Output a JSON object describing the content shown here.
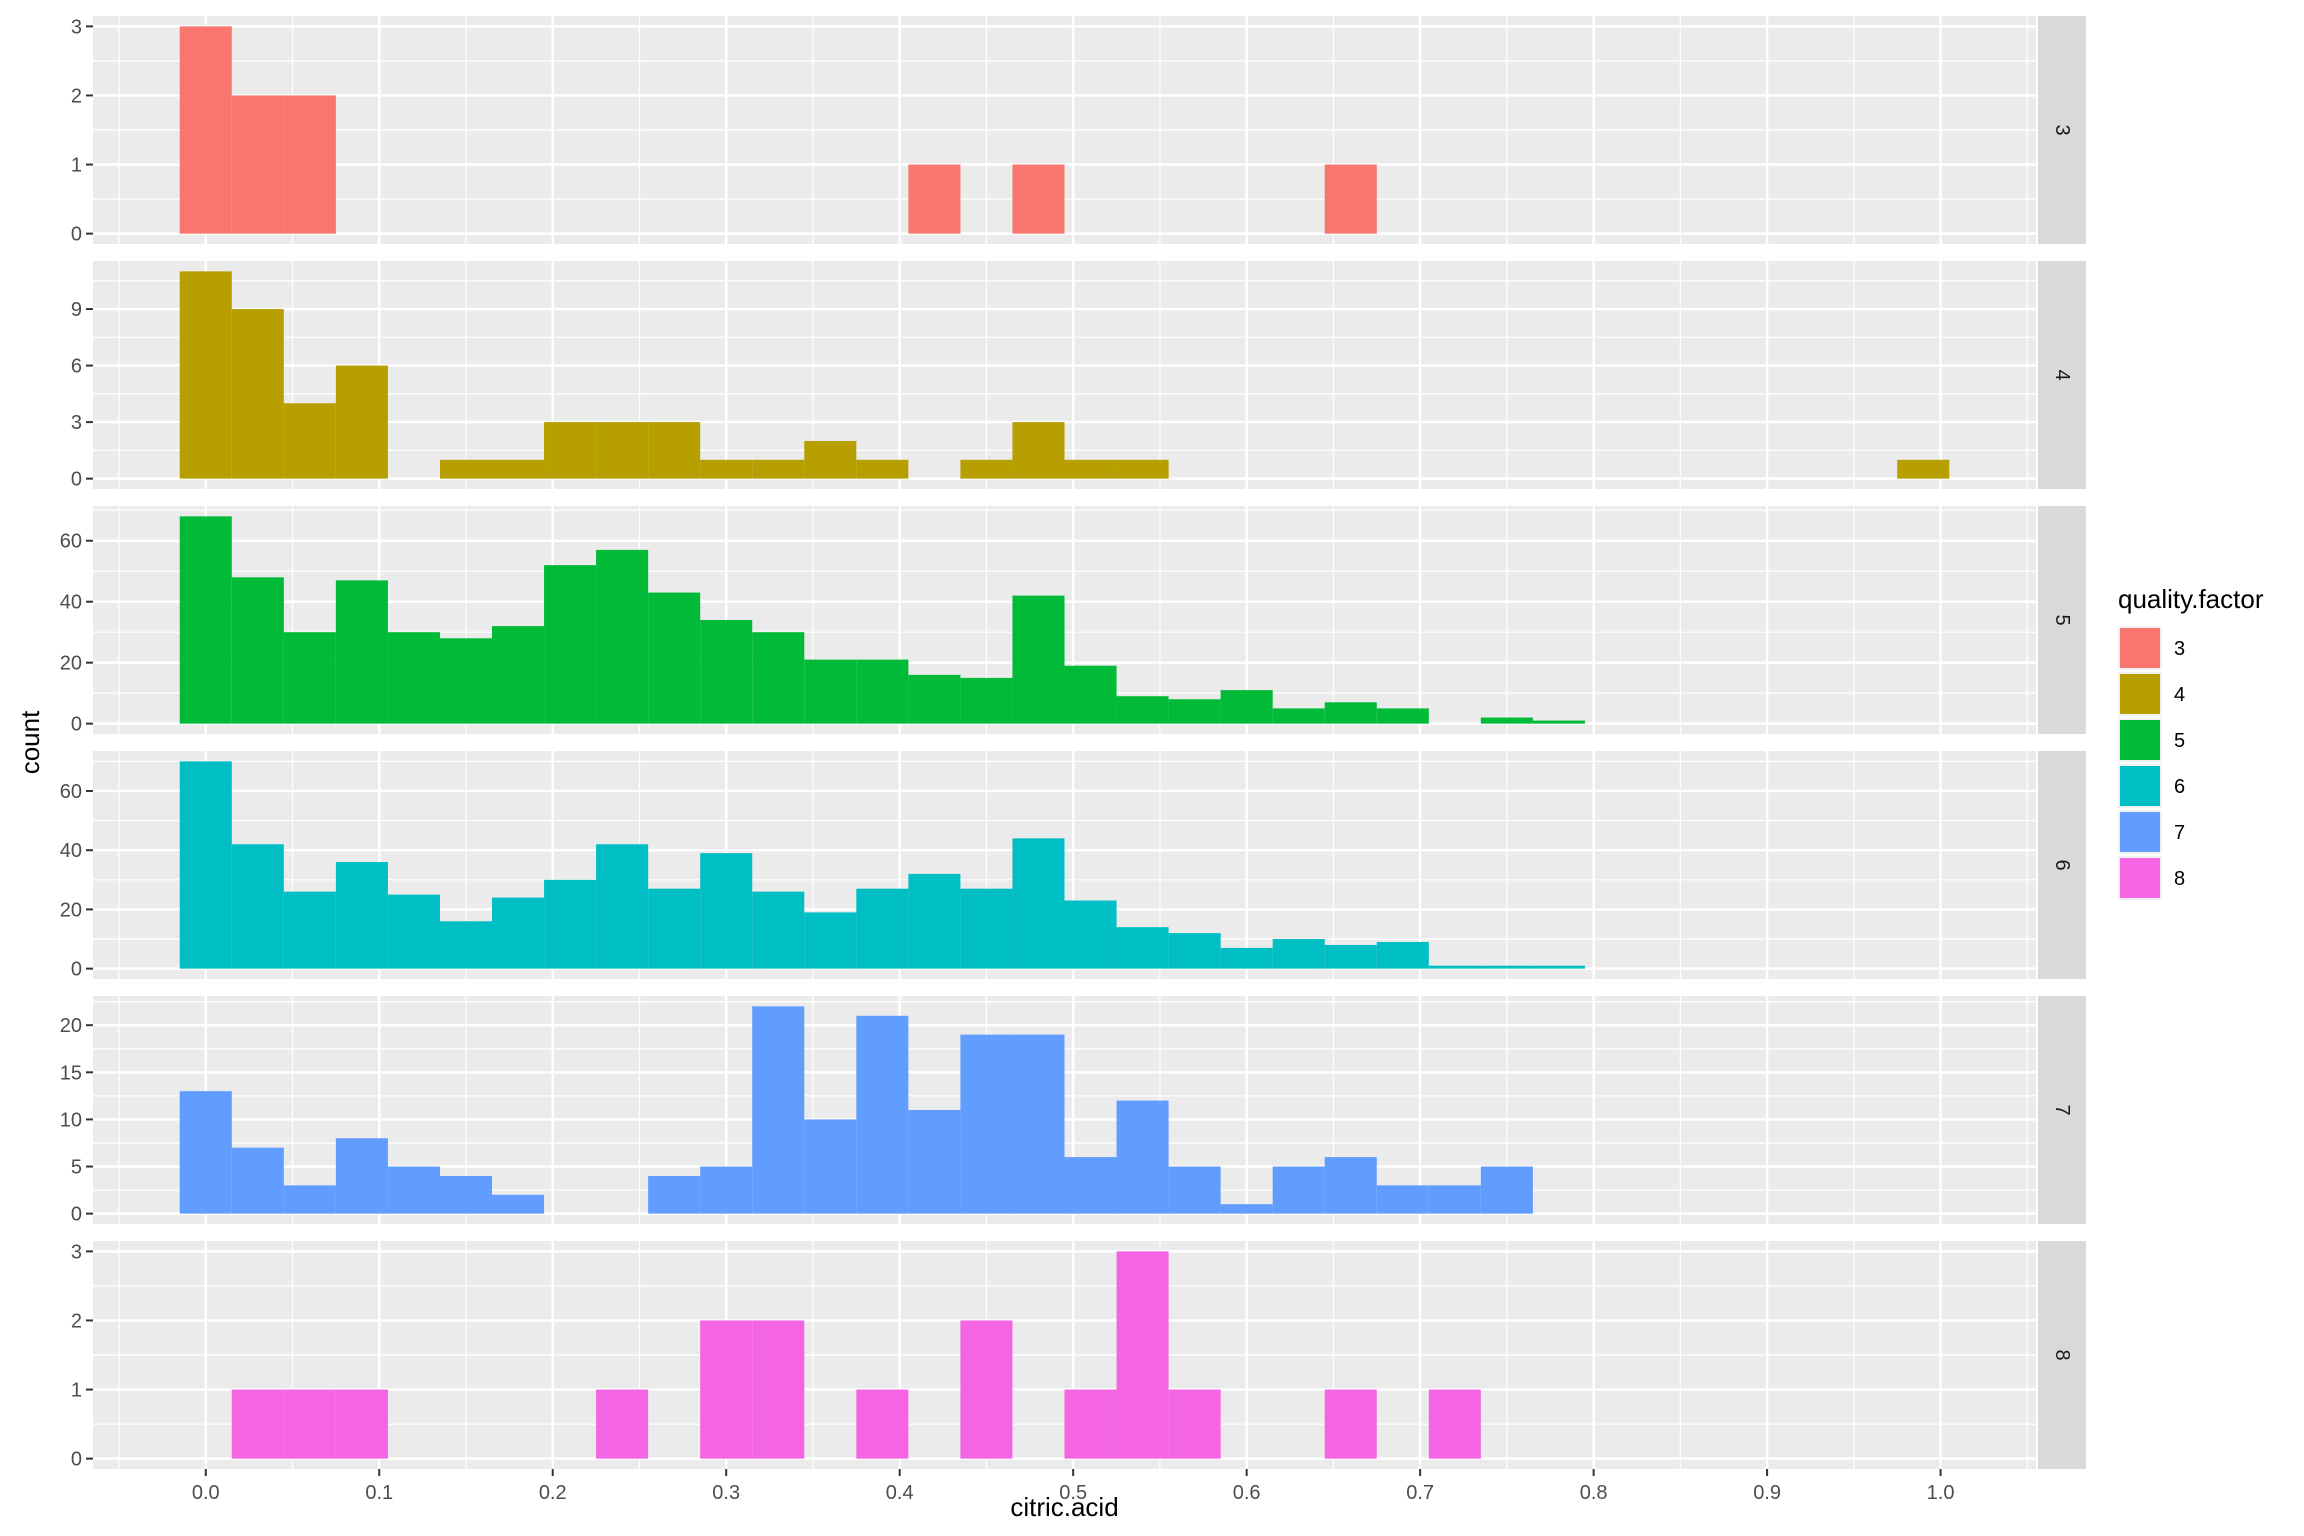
{
  "chart_data": {
    "type": "bar",
    "facet_by": "quality.factor",
    "xlabel": "citric.acid",
    "ylabel": "count",
    "xlim": [
      -0.065,
      1.055
    ],
    "x_ticks": [
      0.0,
      0.1,
      0.2,
      0.3,
      0.4,
      0.5,
      0.6,
      0.7,
      0.8,
      0.9,
      1.0
    ],
    "x_tick_labels": [
      "0.0",
      "0.1",
      "0.2",
      "0.3",
      "0.4",
      "0.5",
      "0.6",
      "0.7",
      "0.8",
      "0.9",
      "1.0"
    ],
    "bin_width": 0.03,
    "bin_starts": [
      -0.015,
      0.015,
      0.045,
      0.075,
      0.105,
      0.135,
      0.165,
      0.195,
      0.225,
      0.255,
      0.285,
      0.315,
      0.345,
      0.375,
      0.405,
      0.435,
      0.465,
      0.495,
      0.525,
      0.555,
      0.585,
      0.615,
      0.645,
      0.675,
      0.705,
      0.735,
      0.765,
      0.795,
      0.825,
      0.855,
      0.885,
      0.915,
      0.945,
      0.975,
      1.005
    ],
    "grid": true,
    "legend": {
      "title": "quality.factor",
      "placement": "right",
      "entries": [
        {
          "label": "3",
          "color": "#F8766D"
        },
        {
          "label": "4",
          "color": "#B79F00"
        },
        {
          "label": "5",
          "color": "#00BA38"
        },
        {
          "label": "6",
          "color": "#00BFC4"
        },
        {
          "label": "7",
          "color": "#619CFF"
        },
        {
          "label": "8",
          "color": "#F564E3"
        }
      ]
    },
    "series": [
      {
        "name": "3",
        "strip": "3",
        "color": "#F8766D",
        "ylim": [
          -0.15,
          3.15
        ],
        "y_ticks": [
          0,
          1,
          2,
          3
        ],
        "y_tick_labels": [
          "0",
          "1",
          "2",
          "3"
        ],
        "values": [
          3,
          2,
          2,
          0,
          0,
          0,
          0,
          0,
          0,
          0,
          0,
          0,
          0,
          0,
          1,
          0,
          1,
          0,
          0,
          0,
          0,
          0,
          1,
          0,
          0,
          0,
          0,
          0,
          0,
          0,
          0,
          0,
          0,
          0,
          0
        ]
      },
      {
        "name": "4",
        "strip": "4",
        "color": "#B79F00",
        "ylim": [
          -0.55,
          11.55
        ],
        "y_ticks": [
          0,
          3,
          6,
          9
        ],
        "y_tick_labels": [
          "0",
          "3",
          "6",
          "9"
        ],
        "values": [
          11,
          9,
          4,
          6,
          0,
          1,
          1,
          3,
          3,
          3,
          1,
          1,
          2,
          1,
          0,
          1,
          3,
          1,
          1,
          0,
          0,
          0,
          0,
          0,
          0,
          0,
          0,
          0,
          0,
          0,
          0,
          0,
          0,
          1,
          0
        ]
      },
      {
        "name": "5",
        "strip": "5",
        "color": "#00BA38",
        "ylim": [
          -3.4,
          71.4
        ],
        "y_ticks": [
          0,
          20,
          40,
          60
        ],
        "y_tick_labels": [
          "0",
          "20",
          "40",
          "60"
        ],
        "values": [
          68,
          48,
          30,
          47,
          30,
          28,
          32,
          52,
          57,
          43,
          34,
          30,
          21,
          21,
          16,
          15,
          42,
          19,
          9,
          8,
          11,
          5,
          7,
          5,
          0,
          2,
          1,
          0,
          0,
          0,
          0,
          0,
          0,
          0,
          0
        ]
      },
      {
        "name": "6",
        "strip": "6",
        "color": "#00BFC4",
        "ylim": [
          -3.5,
          73.5
        ],
        "y_ticks": [
          0,
          20,
          40,
          60
        ],
        "y_tick_labels": [
          "0",
          "20",
          "40",
          "60"
        ],
        "values": [
          70,
          42,
          26,
          36,
          25,
          16,
          24,
          30,
          42,
          27,
          39,
          26,
          19,
          27,
          32,
          27,
          44,
          23,
          14,
          12,
          7,
          10,
          8,
          9,
          1,
          1,
          1,
          0,
          0,
          0,
          0,
          0,
          0,
          0,
          0
        ]
      },
      {
        "name": "7",
        "strip": "7",
        "color": "#619CFF",
        "ylim": [
          -1.1,
          23.1
        ],
        "y_ticks": [
          0,
          5,
          10,
          15,
          20
        ],
        "y_tick_labels": [
          "0",
          "5",
          "10",
          "15",
          "20"
        ],
        "values": [
          13,
          7,
          3,
          8,
          5,
          4,
          2,
          0,
          0,
          4,
          5,
          22,
          10,
          21,
          11,
          19,
          19,
          6,
          12,
          5,
          1,
          5,
          6,
          3,
          3,
          5,
          0,
          0,
          0,
          0,
          0,
          0,
          0,
          0,
          0
        ]
      },
      {
        "name": "8",
        "strip": "8",
        "color": "#F564E3",
        "ylim": [
          -0.15,
          3.15
        ],
        "y_ticks": [
          0,
          1,
          2,
          3
        ],
        "y_tick_labels": [
          "0",
          "1",
          "2",
          "3"
        ],
        "values": [
          0,
          1,
          1,
          1,
          0,
          0,
          0,
          0,
          1,
          0,
          2,
          2,
          0,
          1,
          0,
          2,
          0,
          1,
          3,
          1,
          0,
          0,
          1,
          0,
          1,
          0,
          0,
          0,
          0,
          0,
          0,
          0,
          0,
          0,
          0
        ]
      }
    ]
  }
}
